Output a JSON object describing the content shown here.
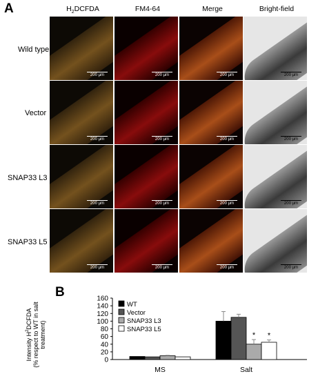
{
  "panel_a": {
    "letter": "A",
    "columns": [
      "H2DCFDA",
      "FM4-64",
      "Merge",
      "Bright-field"
    ],
    "rows": [
      "Wild type",
      "Vector",
      "SNAP33 L3",
      "SNAP33 L5"
    ],
    "scale_label": "200 µm"
  },
  "panel_b": {
    "letter": "B",
    "ylabel_line1": "Intensity H²DCFDA",
    "ylabel_line2": "(% respect to WT in salt",
    "ylabel_line3": "treatment)"
  },
  "chart_data": {
    "type": "bar",
    "categories": [
      "MS",
      "Salt"
    ],
    "series": [
      {
        "name": "WT",
        "values": [
          8,
          100
        ],
        "errors": [
          0,
          25
        ],
        "color": "#000000"
      },
      {
        "name": "Vector",
        "values": [
          7,
          110
        ],
        "errors": [
          0,
          8
        ],
        "color": "#555555"
      },
      {
        "name": "SNAP33 L3",
        "values": [
          10,
          40
        ],
        "errors": [
          1,
          12
        ],
        "color": "#aaaaaa"
      },
      {
        "name": "SNAP33 L5",
        "values": [
          7,
          45
        ],
        "errors": [
          0,
          6
        ],
        "color": "#ffffff"
      }
    ],
    "significance": [
      [
        "",
        ""
      ],
      [
        "",
        ""
      ],
      [
        "",
        "*"
      ],
      [
        "",
        "*"
      ]
    ],
    "ylim": [
      0,
      160
    ],
    "yticks": [
      0,
      20,
      40,
      60,
      80,
      100,
      120,
      140,
      160
    ],
    "legend_position": "top-left"
  }
}
